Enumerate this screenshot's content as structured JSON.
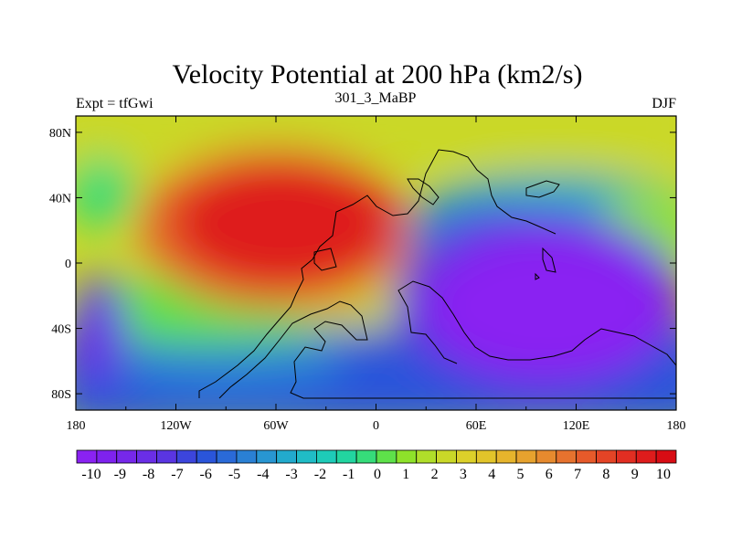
{
  "title": "Velocity Potential at 200 hPa (km2/s)",
  "left_label": "Expt = tfGwi",
  "center_label": "301_3_MaBP",
  "right_label": "DJF",
  "x_ticks": [
    "180",
    "120W",
    "60W",
    "0",
    "60E",
    "120E",
    "180"
  ],
  "y_ticks": [
    "80N",
    "40N",
    "0",
    "40S",
    "80S"
  ],
  "colorbar": {
    "labels": [
      "-10",
      "-9",
      "-8",
      "-7",
      "-6",
      "-5",
      "-4",
      "-3",
      "-2",
      "-1",
      "0",
      "1",
      "2",
      "3",
      "4",
      "5",
      "6",
      "7",
      "8",
      "9",
      "10"
    ],
    "colors": [
      "#8a22f2",
      "#7e22ee",
      "#7628ea",
      "#6a2ee6",
      "#5a35e2",
      "#3c45dc",
      "#2a55da",
      "#2a6ad8",
      "#2a80d4",
      "#2896d2",
      "#22aacd",
      "#20bcc6",
      "#1ecbb8",
      "#22d5a0",
      "#36dc7a",
      "#5ee14a",
      "#8ee22a",
      "#b0de2a",
      "#cad828",
      "#dcd02a",
      "#e2c42a",
      "#e6b42c",
      "#e6a22e",
      "#e68a2e",
      "#e6722e",
      "#e65a2a",
      "#e44426",
      "#e22e22",
      "#de1c1c",
      "#d80c14"
    ]
  }
}
